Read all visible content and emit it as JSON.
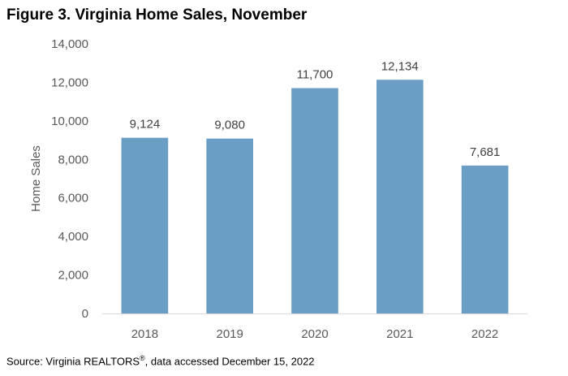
{
  "header": {
    "title": "Figure 3. Virginia Home Sales, November"
  },
  "footer": {
    "source_prefix": "Source: Virginia REALTORS",
    "source_mark": "®",
    "source_suffix": ", data accessed December 15, 2022"
  },
  "chart_data": {
    "type": "bar",
    "title": "Figure 3. Virginia Home Sales, November",
    "xlabel": "",
    "ylabel": "Home Sales",
    "categories": [
      "2018",
      "2019",
      "2020",
      "2021",
      "2022"
    ],
    "values": [
      9124,
      9080,
      11700,
      12134,
      7681
    ],
    "data_labels": [
      "9,124",
      "9,080",
      "11,700",
      "12,134",
      "7,681"
    ],
    "ylim": [
      0,
      14000
    ],
    "yticks": [
      0,
      2000,
      4000,
      6000,
      8000,
      10000,
      12000,
      14000
    ],
    "ytick_labels": [
      "0",
      "2,000",
      "4,000",
      "6,000",
      "8,000",
      "10,000",
      "12,000",
      "14,000"
    ],
    "grid": false,
    "legend": "none",
    "colors": {
      "bar": "#6a9ec4",
      "axis": "#d9d9d9"
    }
  }
}
